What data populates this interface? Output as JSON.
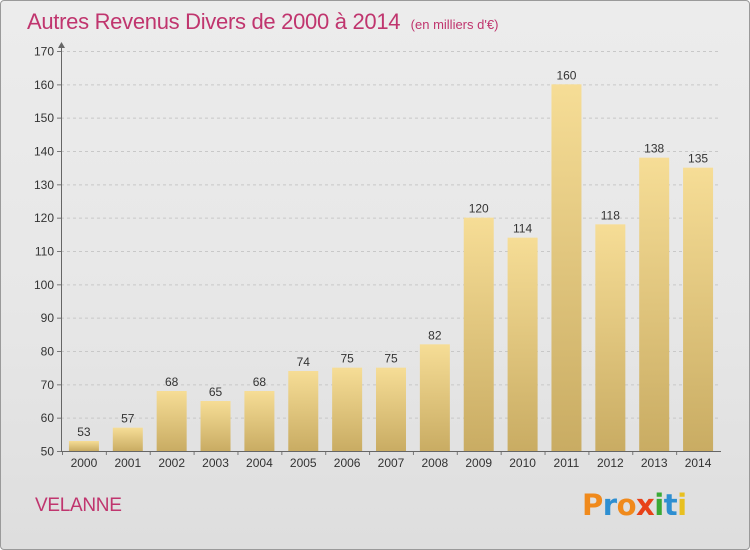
{
  "chart_data": {
    "type": "bar",
    "title": "Autres Revenus Divers de 2000 à 2014",
    "subtitle": "(en milliers d'€)",
    "categories": [
      "2000",
      "2001",
      "2002",
      "2003",
      "2004",
      "2005",
      "2006",
      "2007",
      "2008",
      "2009",
      "2010",
      "2011",
      "2012",
      "2013",
      "2014"
    ],
    "values": [
      53,
      57,
      68,
      65,
      68,
      74,
      75,
      75,
      82,
      120,
      114,
      160,
      118,
      138,
      135
    ],
    "ylim": [
      50,
      170
    ],
    "yticks": [
      50,
      60,
      70,
      80,
      90,
      100,
      110,
      120,
      130,
      140,
      150,
      160,
      170
    ],
    "grid": true,
    "bar_color": "#e6cc84"
  },
  "footer": {
    "town": "VELANNE",
    "logo": "Proxiti",
    "logo_colors": [
      "#f08a1c",
      "#2e8fd1",
      "#f08a1c",
      "#e84118",
      "#3aa935",
      "#2e8fd1",
      "#e8c020"
    ]
  }
}
